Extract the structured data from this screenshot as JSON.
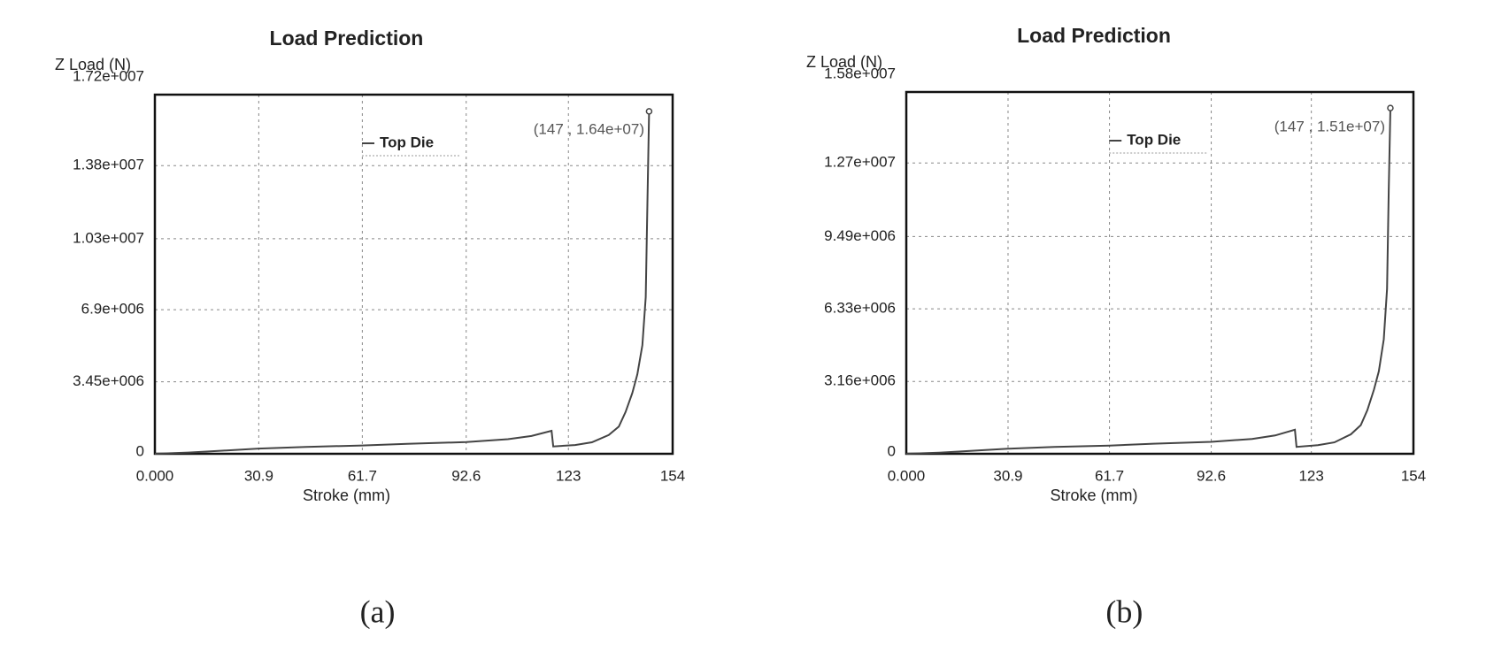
{
  "chart_data": [
    {
      "type": "line",
      "title": "Load Prediction",
      "y_label": "Z Load (N)",
      "x_label": "Stroke (mm)",
      "caption": "(a)",
      "annotation": "(147 , 1.64e+07)",
      "legend": "upper center",
      "grid": true,
      "x": [
        0,
        10,
        20,
        30.9,
        45,
        61.7,
        75,
        92.6,
        105,
        112,
        118,
        118.5,
        125,
        130,
        135,
        138,
        140,
        142,
        143.5,
        145,
        146,
        146.5,
        147
      ],
      "series": [
        {
          "name": "Top Die",
          "color": "#444444",
          "values": [
            0,
            60000,
            150000,
            250000,
            330000,
            400000,
            480000,
            560000,
            700000,
            850000,
            1100000,
            350000,
            420000,
            550000,
            900000,
            1300000,
            2000000,
            2900000,
            3800000,
            5200000,
            7500000,
            12000000,
            16400000
          ]
        }
      ],
      "xlim": [
        0,
        154
      ],
      "xticks": [
        {
          "value": 0,
          "label": "0.000"
        },
        30.9,
        61.7,
        92.6,
        123,
        154
      ],
      "ylim": [
        0,
        17200000
      ],
      "yticks": [
        0,
        {
          "value": 3450000,
          "label": "3.45e+006"
        },
        {
          "value": 6900000,
          "label": "6.9e+006"
        },
        {
          "value": 10300000,
          "label": "1.03e+007"
        },
        {
          "value": 13800000,
          "label": "1.38e+007"
        },
        {
          "value": 17200000,
          "label": "1.72e+007"
        }
      ]
    },
    {
      "type": "line",
      "title": "Load Prediction",
      "y_label": "Z Load (N)",
      "x_label": "Stroke (mm)",
      "caption": "(b)",
      "annotation": "(147 , 1.51e+07)",
      "legend": "upper center",
      "grid": true,
      "x": [
        0,
        10,
        20,
        30.9,
        45,
        61.7,
        75,
        92.6,
        105,
        112,
        118,
        118.5,
        125,
        130,
        135,
        138,
        140,
        142,
        143.5,
        145,
        146,
        146.5,
        147
      ],
      "series": [
        {
          "name": "Top Die",
          "color": "#444444",
          "values": [
            0,
            50000,
            130000,
            220000,
            300000,
            360000,
            440000,
            520000,
            650000,
            800000,
            1050000,
            300000,
            380000,
            500000,
            850000,
            1250000,
            1900000,
            2800000,
            3600000,
            5000000,
            7200000,
            11500000,
            15100000
          ]
        }
      ],
      "xlim": [
        0,
        154
      ],
      "xticks": [
        {
          "value": 0,
          "label": "0.000"
        },
        30.9,
        61.7,
        92.6,
        123,
        154
      ],
      "ylim": [
        0,
        15800000
      ],
      "yticks": [
        0,
        {
          "value": 3160000,
          "label": "3.16e+006"
        },
        {
          "value": 6330000,
          "label": "6.33e+006"
        },
        {
          "value": 9490000,
          "label": "9.49e+006"
        },
        {
          "value": 12700000,
          "label": "1.27e+007"
        },
        {
          "value": 15800000,
          "label": "1.58e+007"
        }
      ]
    }
  ]
}
